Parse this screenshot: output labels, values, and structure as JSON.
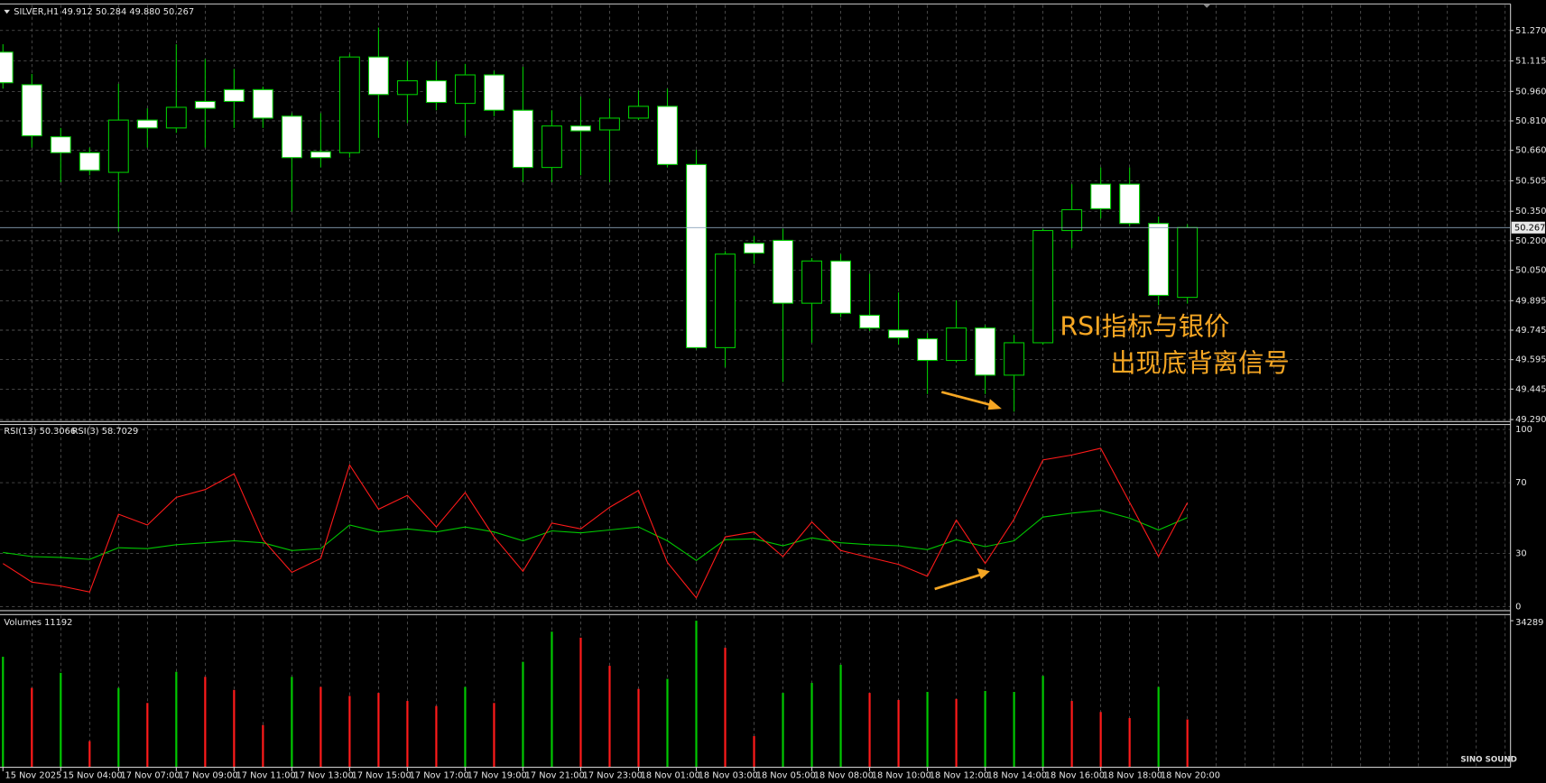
{
  "chart_data": [
    {
      "type": "candlestick",
      "title": "SILVER,H1  49.912 50.284 49.880 50.267",
      "categories": [
        "15 Nov 2025",
        null,
        "15 Nov 04:00",
        null,
        "17 Nov 07:00",
        null,
        "17 Nov 09:00",
        null,
        "17 Nov 11:00",
        null,
        "17 Nov 13:00",
        null,
        "17 Nov 15:00",
        null,
        "17 Nov 17:00",
        null,
        "17 Nov 19:00",
        null,
        "17 Nov 21:00",
        null,
        "17 Nov 23:00",
        null,
        "18 Nov 01:00",
        null,
        "18 Nov 03:00",
        null,
        "18 Nov 05:00",
        null,
        "18 Nov 08:00",
        null,
        "18 Nov 10:00",
        null,
        "18 Nov 12:00",
        null,
        "18 Nov 14:00",
        null,
        "18 Nov 16:00",
        null,
        "18 Nov 18:00",
        null,
        "18 Nov 20:00",
        null
      ],
      "open": [
        51.16,
        50.994,
        50.729,
        50.648,
        50.548,
        50.814,
        50.774,
        50.909,
        50.969,
        50.969,
        50.834,
        50.653,
        50.648,
        51.135,
        50.944,
        51.014,
        50.899,
        51.044,
        50.864,
        50.573,
        50.784,
        50.764,
        50.824,
        50.884,
        50.588,
        49.656,
        50.187,
        50.202,
        49.882,
        50.097,
        49.821,
        49.746,
        49.701,
        49.591,
        49.756,
        49.516,
        49.681,
        50.252,
        50.488,
        50.488,
        50.288,
        49.912
      ],
      "high": [
        51.2,
        51.049,
        50.774,
        50.674,
        50.999,
        50.874,
        51.2,
        51.125,
        51.075,
        50.984,
        50.849,
        50.849,
        51.15,
        51.285,
        51.115,
        51.115,
        51.1,
        51.064,
        51.085,
        50.864,
        50.934,
        50.924,
        50.964,
        50.974,
        50.663,
        50.147,
        50.222,
        50.262,
        50.112,
        50.132,
        50.032,
        49.937,
        49.731,
        49.897,
        49.771,
        49.721,
        50.262,
        50.488,
        50.573,
        50.573,
        50.323,
        50.284
      ],
      "low": [
        50.974,
        50.674,
        50.498,
        50.533,
        50.247,
        50.674,
        50.749,
        50.674,
        50.774,
        50.774,
        50.348,
        50.573,
        50.623,
        50.724,
        50.799,
        50.864,
        50.734,
        50.834,
        50.498,
        50.498,
        50.533,
        50.498,
        50.814,
        50.573,
        49.646,
        49.556,
        50.082,
        49.481,
        49.681,
        49.811,
        49.741,
        49.671,
        49.42,
        49.581,
        49.42,
        49.33,
        49.671,
        50.162,
        50.313,
        50.273,
        49.872,
        49.88
      ],
      "close": [
        51.004,
        50.734,
        50.648,
        50.558,
        50.814,
        50.774,
        50.879,
        50.874,
        50.909,
        50.824,
        50.623,
        50.623,
        51.135,
        50.944,
        51.014,
        50.904,
        51.044,
        50.864,
        50.573,
        50.784,
        50.759,
        50.824,
        50.884,
        50.588,
        49.656,
        50.132,
        50.137,
        49.882,
        50.097,
        49.831,
        49.756,
        49.706,
        49.591,
        49.756,
        49.516,
        49.681,
        50.252,
        50.358,
        50.363,
        50.288,
        49.922,
        50.267
      ],
      "up_color": "#000000",
      "down_color": "#ffffff",
      "wick_color": "#00c800",
      "last_price": 50.267,
      "ylim": [
        49.28,
        51.405
      ],
      "yticks": [
        {
          "value": 49.29,
          "label": "49.290"
        },
        49.445,
        49.595,
        49.745,
        49.895,
        {
          "value": 50.05,
          "label": "50.050"
        },
        {
          "value": 50.2,
          "label": "50.200"
        },
        {
          "value": 50.35,
          "label": "50.350"
        },
        50.505,
        {
          "value": 50.66,
          "label": "50.660"
        },
        {
          "value": 50.81,
          "label": "50.810"
        },
        {
          "value": 50.96,
          "label": "50.960"
        },
        51.115,
        {
          "value": 51.27,
          "label": "51.270"
        }
      ],
      "grid": true,
      "annotations": [
        "RSI指标与银价",
        "出现底背离信号"
      ]
    },
    {
      "type": "line",
      "series": [
        {
          "name": "RSI(13) 50.3066",
          "color": "#00c800",
          "values": [
            30.6,
            28.3,
            27.8,
            26.7,
            33.3,
            32.8,
            35.0,
            36.1,
            37.2,
            36.1,
            31.7,
            32.8,
            46.1,
            42.2,
            43.9,
            42.2,
            45.0,
            42.2,
            37.2,
            42.8,
            41.7,
            43.3,
            45.0,
            37.2,
            26.1,
            37.8,
            38.3,
            34.4,
            38.9,
            36.1,
            35.0,
            34.4,
            32.2,
            37.8,
            33.9,
            37.2,
            50.6,
            52.8,
            54.4,
            50.0,
            43.3,
            50.3
          ]
        },
        {
          "name": "RSI(3) 58.7029",
          "color": "#ff1a1a",
          "values": [
            24.4,
            13.9,
            11.7,
            8.3,
            52.2,
            46.1,
            61.7,
            66.1,
            75.0,
            37.8,
            19.4,
            27.2,
            80.0,
            55.0,
            62.8,
            45.0,
            64.4,
            39.4,
            20.0,
            47.2,
            43.9,
            56.1,
            65.6,
            25.0,
            5.0,
            39.4,
            42.2,
            28.3,
            47.8,
            31.7,
            27.8,
            23.9,
            17.2,
            48.9,
            24.4,
            49.4,
            82.8,
            85.6,
            89.4,
            58.9,
            28.3,
            58.7
          ]
        }
      ],
      "ylim": [
        -2.2,
        102.8
      ],
      "yticks": [
        0,
        30,
        70,
        100
      ],
      "grid": true
    },
    {
      "type": "bar",
      "title": "Volumes 11192",
      "values": [
        25850,
        18565,
        22090,
        6110,
        18565,
        15040,
        22325,
        21150,
        18095,
        9870,
        21150,
        18800,
        16685,
        17390,
        15510,
        14335,
        18800,
        15040,
        24675,
        31725,
        30315,
        23735,
        18330,
        20680,
        34289,
        27965,
        7285,
        17390,
        19740,
        23970,
        17390,
        15745,
        17625,
        15980,
        17860,
        17625,
        21385,
        15510,
        12925,
        11515,
        18800,
        11192
      ],
      "colors": [
        "#00c800",
        "#ff1a1a",
        "#00c800",
        "#ff1a1a",
        "#00c800",
        "#ff1a1a",
        "#00c800",
        "#ff1a1a",
        "#ff1a1a",
        "#ff1a1a",
        "#00c800",
        "#ff1a1a",
        "#ff1a1a",
        "#ff1a1a",
        "#ff1a1a",
        "#ff1a1a",
        "#00c800",
        "#ff1a1a",
        "#00c800",
        "#00c800",
        "#ff1a1a",
        "#ff1a1a",
        "#ff1a1a",
        "#00c800",
        "#00c800",
        "#ff1a1a",
        "#ff1a1a",
        "#00c800",
        "#00c800",
        "#00c800",
        "#ff1a1a",
        "#ff1a1a",
        "#00c800",
        "#ff1a1a",
        "#00c800",
        "#00c800",
        "#00c800",
        "#ff1a1a",
        "#ff1a1a",
        "#ff1a1a",
        "#00c800",
        "#ff1a1a"
      ],
      "ylim": [
        0,
        35720
      ],
      "yticks": [
        34289
      ]
    }
  ],
  "watermark": "SINO SOUND"
}
